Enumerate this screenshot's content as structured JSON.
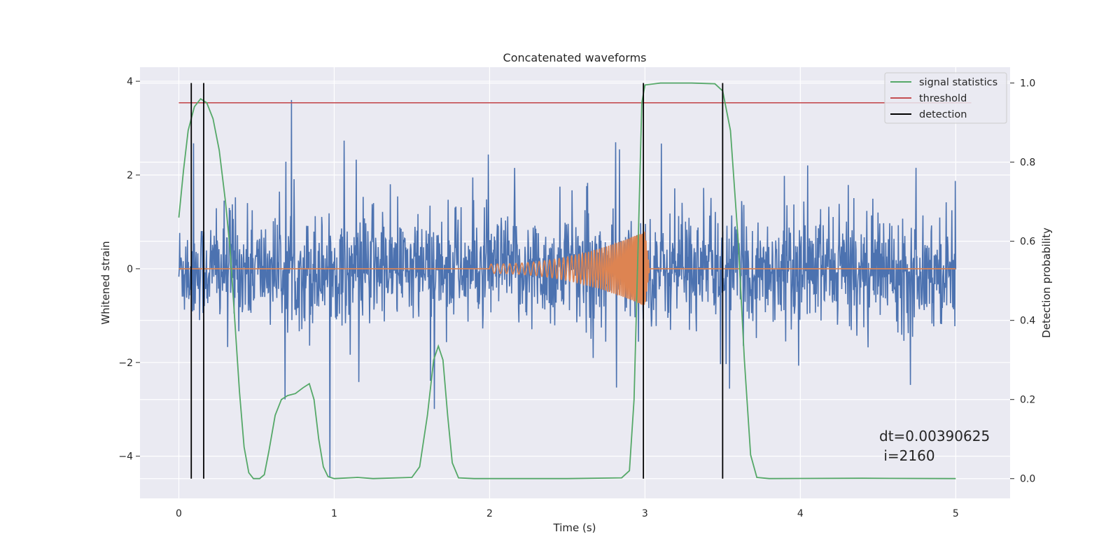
{
  "chart_data": {
    "type": "line",
    "title": "Concatenated waveforms",
    "xlabel": "Time (s)",
    "ylabel_left": "Whitened strain",
    "ylabel_right": "Detection probability",
    "xlim": [
      -0.25,
      5.35
    ],
    "ylim_left": [
      -4.9,
      4.3
    ],
    "ylim_right": [
      -0.05,
      1.04
    ],
    "x_ticks": [
      0,
      1,
      2,
      3,
      4,
      5
    ],
    "x_tick_labels": [
      "0",
      "1",
      "2",
      "3",
      "4",
      "5"
    ],
    "y_left_ticks": [
      -4,
      -2,
      0,
      2,
      4
    ],
    "y_left_tick_labels": [
      "−4",
      "−2",
      "0",
      "2",
      "4"
    ],
    "y_right_ticks": [
      0.0,
      0.2,
      0.4,
      0.6,
      0.8,
      1.0
    ],
    "y_right_tick_labels": [
      "0.0",
      "0.2",
      "0.4",
      "0.6",
      "0.8",
      "1.0"
    ],
    "grid": true,
    "legend_position": "top-right",
    "annotation": {
      "line1": "dt=0.00390625",
      "line2": " i=2160"
    },
    "strain": {
      "x_range": [
        0,
        5
      ],
      "dt": 0.00390625,
      "typical_amplitude": 0.55,
      "min": -4.45,
      "max": 3.6,
      "color": "#4c72b0"
    },
    "injected_chirp": {
      "t_start": 2.0,
      "t_merger": 3.0,
      "start_amplitude": 0.1,
      "peak_amplitude": 0.8,
      "start_frequency_hz": 25,
      "end_frequency_hz": 130,
      "color": "#dd8452"
    },
    "signal_statistics": {
      "name": "signal statistics",
      "axis": "right",
      "color": "#55a868",
      "points": [
        [
          0.0,
          0.66
        ],
        [
          0.03,
          0.78
        ],
        [
          0.06,
          0.88
        ],
        [
          0.1,
          0.94
        ],
        [
          0.14,
          0.96
        ],
        [
          0.18,
          0.95
        ],
        [
          0.22,
          0.91
        ],
        [
          0.26,
          0.83
        ],
        [
          0.3,
          0.7
        ],
        [
          0.33,
          0.58
        ],
        [
          0.36,
          0.4
        ],
        [
          0.39,
          0.22
        ],
        [
          0.42,
          0.08
        ],
        [
          0.45,
          0.015
        ],
        [
          0.48,
          0.0
        ],
        [
          0.52,
          0.0
        ],
        [
          0.55,
          0.01
        ],
        [
          0.58,
          0.07
        ],
        [
          0.62,
          0.16
        ],
        [
          0.66,
          0.2
        ],
        [
          0.7,
          0.21
        ],
        [
          0.75,
          0.215
        ],
        [
          0.8,
          0.23
        ],
        [
          0.84,
          0.24
        ],
        [
          0.87,
          0.2
        ],
        [
          0.9,
          0.1
        ],
        [
          0.93,
          0.03
        ],
        [
          0.96,
          0.005
        ],
        [
          1.0,
          0.0
        ],
        [
          1.15,
          0.003
        ],
        [
          1.25,
          0.0
        ],
        [
          1.5,
          0.003
        ],
        [
          1.55,
          0.03
        ],
        [
          1.6,
          0.16
        ],
        [
          1.64,
          0.3
        ],
        [
          1.67,
          0.335
        ],
        [
          1.7,
          0.3
        ],
        [
          1.73,
          0.16
        ],
        [
          1.76,
          0.04
        ],
        [
          1.8,
          0.002
        ],
        [
          1.9,
          0.0
        ],
        [
          2.5,
          0.0
        ],
        [
          2.85,
          0.002
        ],
        [
          2.9,
          0.02
        ],
        [
          2.93,
          0.2
        ],
        [
          2.96,
          0.65
        ],
        [
          2.98,
          0.95
        ],
        [
          3.0,
          0.995
        ],
        [
          3.1,
          1.0
        ],
        [
          3.3,
          1.0
        ],
        [
          3.45,
          0.998
        ],
        [
          3.5,
          0.98
        ],
        [
          3.55,
          0.88
        ],
        [
          3.6,
          0.6
        ],
        [
          3.64,
          0.3
        ],
        [
          3.68,
          0.06
        ],
        [
          3.72,
          0.003
        ],
        [
          3.8,
          0.0
        ],
        [
          4.4,
          0.001
        ],
        [
          5.0,
          0.0
        ]
      ]
    },
    "threshold": {
      "name": "threshold",
      "axis": "right",
      "value": 0.95,
      "x_range": [
        0,
        5.1
      ],
      "color": "#c44e52"
    },
    "detection": {
      "name": "detection",
      "color": "#000000",
      "times": [
        0.08,
        0.16,
        2.99,
        3.5
      ],
      "y_range_right": [
        0.0,
        1.0
      ]
    }
  }
}
